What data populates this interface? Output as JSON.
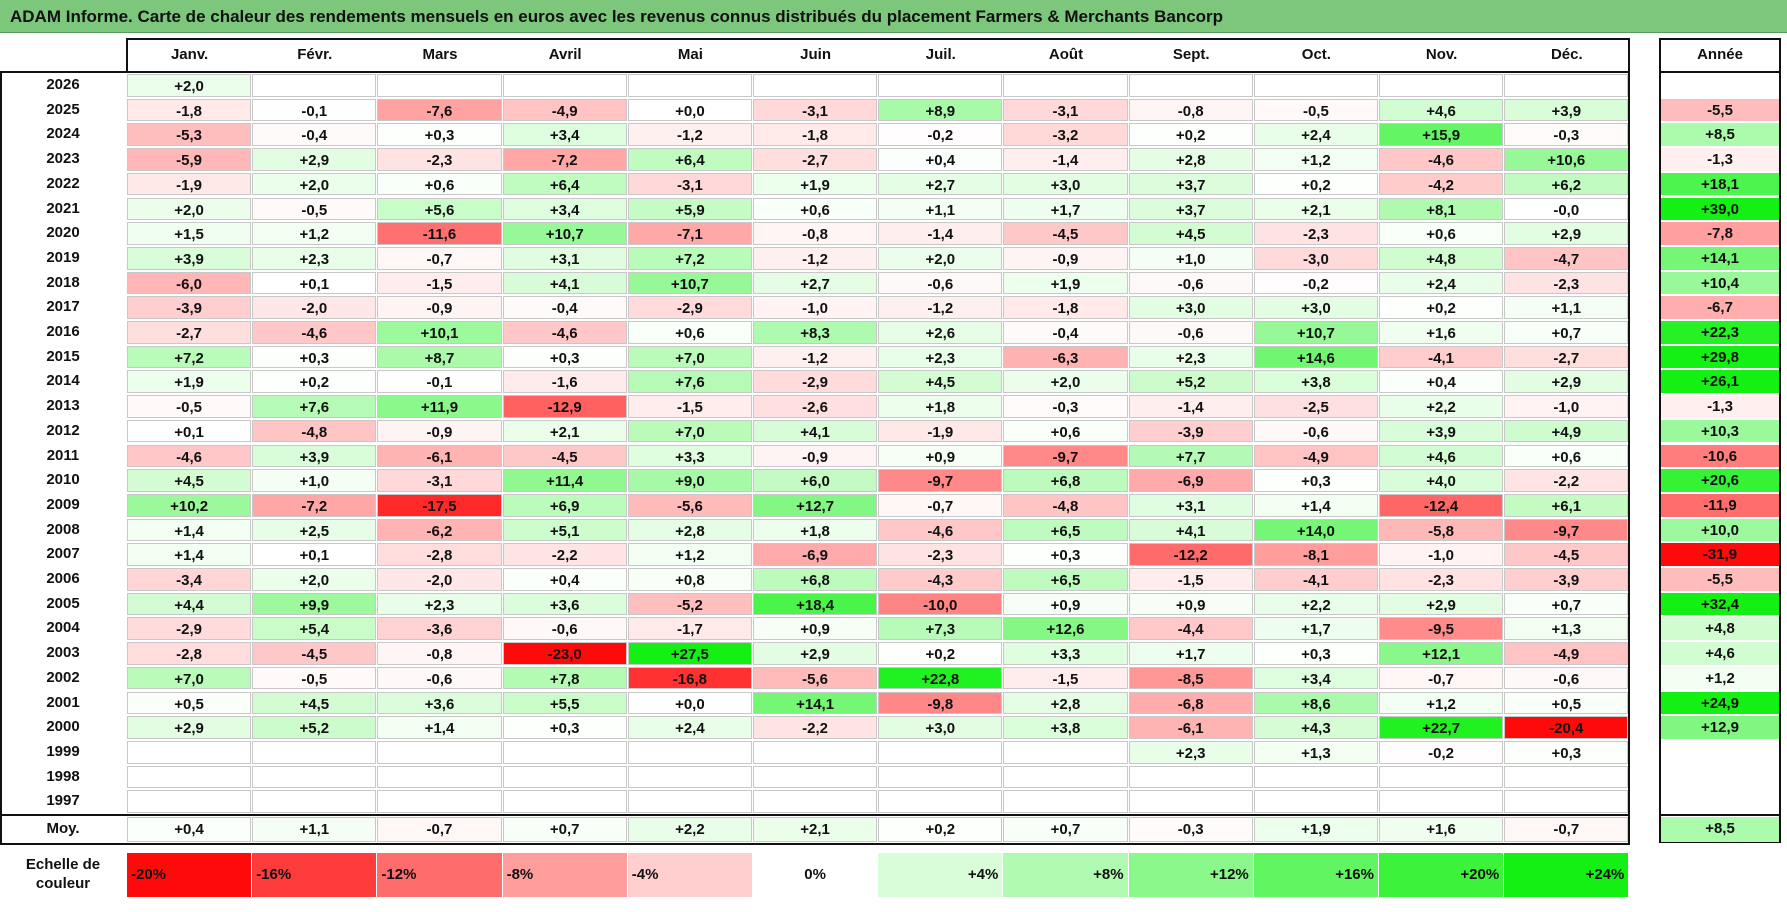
{
  "title": "ADAM Informe. Carte de chaleur des rendements mensuels en euros avec les revenus connus distribués du placement Farmers & Merchants Bancorp",
  "chart_data": {
    "type": "heatmap",
    "title": "ADAM Informe. Carte de chaleur des rendements mensuels en euros avec les revenus connus distribués du placement Farmers & Merchants Bancorp",
    "months": [
      "Janv.",
      "Févr.",
      "Mars",
      "Avril",
      "Mai",
      "Juin",
      "Juil.",
      "Août",
      "Sept.",
      "Oct.",
      "Nov.",
      "Déc."
    ],
    "year_header": "Année",
    "rows": [
      {
        "year": "2026",
        "months": [
          "+2,0",
          "",
          "",
          "",
          "",
          "",
          "",
          "",
          "",
          "",
          "",
          ""
        ],
        "annual": ""
      },
      {
        "year": "2025",
        "months": [
          "-1,8",
          "-0,1",
          "-7,6",
          "-4,9",
          "+0,0",
          "-3,1",
          "+8,9",
          "-3,1",
          "-0,8",
          "-0,5",
          "+4,6",
          "+3,9"
        ],
        "annual": "-5,5"
      },
      {
        "year": "2024",
        "months": [
          "-5,3",
          "-0,4",
          "+0,3",
          "+3,4",
          "-1,2",
          "-1,8",
          "-0,2",
          "-3,2",
          "+0,2",
          "+2,4",
          "+15,9",
          "-0,3"
        ],
        "annual": "+8,5"
      },
      {
        "year": "2023",
        "months": [
          "-5,9",
          "+2,9",
          "-2,3",
          "-7,2",
          "+6,4",
          "-2,7",
          "+0,4",
          "-1,4",
          "+2,8",
          "+1,2",
          "-4,6",
          "+10,6"
        ],
        "annual": "-1,3"
      },
      {
        "year": "2022",
        "months": [
          "-1,9",
          "+2,0",
          "+0,6",
          "+6,4",
          "-3,1",
          "+1,9",
          "+2,7",
          "+3,0",
          "+3,7",
          "+0,2",
          "-4,2",
          "+6,2"
        ],
        "annual": "+18,1"
      },
      {
        "year": "2021",
        "months": [
          "+2,0",
          "-0,5",
          "+5,6",
          "+3,4",
          "+5,9",
          "+0,6",
          "+1,1",
          "+1,7",
          "+3,7",
          "+2,1",
          "+8,1",
          "-0,0"
        ],
        "annual": "+39,0"
      },
      {
        "year": "2020",
        "months": [
          "+1,5",
          "+1,2",
          "-11,6",
          "+10,7",
          "-7,1",
          "-0,8",
          "-1,4",
          "-4,5",
          "+4,5",
          "-2,3",
          "+0,6",
          "+2,9"
        ],
        "annual": "-7,8"
      },
      {
        "year": "2019",
        "months": [
          "+3,9",
          "+2,3",
          "-0,7",
          "+3,1",
          "+7,2",
          "-1,2",
          "+2,0",
          "-0,9",
          "+1,0",
          "-3,0",
          "+4,8",
          "-4,7"
        ],
        "annual": "+14,1"
      },
      {
        "year": "2018",
        "months": [
          "-6,0",
          "+0,1",
          "-1,5",
          "+4,1",
          "+10,7",
          "+2,7",
          "-0,6",
          "+1,9",
          "-0,6",
          "-0,2",
          "+2,4",
          "-2,3"
        ],
        "annual": "+10,4"
      },
      {
        "year": "2017",
        "months": [
          "-3,9",
          "-2,0",
          "-0,9",
          "-0,4",
          "-2,9",
          "-1,0",
          "-1,2",
          "-1,8",
          "+3,0",
          "+3,0",
          "+0,2",
          "+1,1"
        ],
        "annual": "-6,7"
      },
      {
        "year": "2016",
        "months": [
          "-2,7",
          "-4,6",
          "+10,1",
          "-4,6",
          "+0,6",
          "+8,3",
          "+2,6",
          "-0,4",
          "-0,6",
          "+10,7",
          "+1,6",
          "+0,7"
        ],
        "annual": "+22,3"
      },
      {
        "year": "2015",
        "months": [
          "+7,2",
          "+0,3",
          "+8,7",
          "+0,3",
          "+7,0",
          "-1,2",
          "+2,3",
          "-6,3",
          "+2,3",
          "+14,6",
          "-4,1",
          "-2,7"
        ],
        "annual": "+29,8"
      },
      {
        "year": "2014",
        "months": [
          "+1,9",
          "+0,2",
          "-0,1",
          "-1,6",
          "+7,6",
          "-2,9",
          "+4,5",
          "+2,0",
          "+5,2",
          "+3,8",
          "+0,4",
          "+2,9"
        ],
        "annual": "+26,1"
      },
      {
        "year": "2013",
        "months": [
          "-0,5",
          "+7,6",
          "+11,9",
          "-12,9",
          "-1,5",
          "-2,6",
          "+1,8",
          "-0,3",
          "-1,4",
          "-2,5",
          "+2,2",
          "-1,0"
        ],
        "annual": "-1,3"
      },
      {
        "year": "2012",
        "months": [
          "+0,1",
          "-4,8",
          "-0,9",
          "+2,1",
          "+7,0",
          "+4,1",
          "-1,9",
          "+0,6",
          "-3,9",
          "-0,6",
          "+3,9",
          "+4,9"
        ],
        "annual": "+10,3"
      },
      {
        "year": "2011",
        "months": [
          "-4,6",
          "+3,9",
          "-6,1",
          "-4,5",
          "+3,3",
          "-0,9",
          "+0,9",
          "-9,7",
          "+7,7",
          "-4,9",
          "+4,6",
          "+0,6"
        ],
        "annual": "-10,6"
      },
      {
        "year": "2010",
        "months": [
          "+4,5",
          "+1,0",
          "-3,1",
          "+11,4",
          "+9,0",
          "+6,0",
          "-9,7",
          "+6,8",
          "-6,9",
          "+0,3",
          "+4,0",
          "-2,2"
        ],
        "annual": "+20,6"
      },
      {
        "year": "2009",
        "months": [
          "+10,2",
          "-7,2",
          "-17,5",
          "+6,9",
          "-5,6",
          "+12,7",
          "-0,7",
          "-4,8",
          "+3,1",
          "+1,4",
          "-12,4",
          "+6,1"
        ],
        "annual": "-11,9"
      },
      {
        "year": "2008",
        "months": [
          "+1,4",
          "+2,5",
          "-6,2",
          "+5,1",
          "+2,8",
          "+1,8",
          "-4,6",
          "+6,5",
          "+4,1",
          "+14,0",
          "-5,8",
          "-9,7"
        ],
        "annual": "+10,0"
      },
      {
        "year": "2007",
        "months": [
          "+1,4",
          "+0,1",
          "-2,8",
          "-2,2",
          "+1,2",
          "-6,9",
          "-2,3",
          "+0,3",
          "-12,2",
          "-8,1",
          "-1,0",
          "-4,5"
        ],
        "annual": "-31,9"
      },
      {
        "year": "2006",
        "months": [
          "-3,4",
          "+2,0",
          "-2,0",
          "+0,4",
          "+0,8",
          "+6,8",
          "-4,3",
          "+6,5",
          "-1,5",
          "-4,1",
          "-2,3",
          "-3,9"
        ],
        "annual": "-5,5"
      },
      {
        "year": "2005",
        "months": [
          "+4,4",
          "+9,9",
          "+2,3",
          "+3,6",
          "-5,2",
          "+18,4",
          "-10,0",
          "+0,9",
          "+0,9",
          "+2,2",
          "+2,9",
          "+0,7"
        ],
        "annual": "+32,4"
      },
      {
        "year": "2004",
        "months": [
          "-2,9",
          "+5,4",
          "-3,6",
          "-0,6",
          "-1,7",
          "+0,9",
          "+7,3",
          "+12,6",
          "-4,4",
          "+1,7",
          "-9,5",
          "+1,3"
        ],
        "annual": "+4,8"
      },
      {
        "year": "2003",
        "months": [
          "-2,8",
          "-4,5",
          "-0,8",
          "-23,0",
          "+27,5",
          "+2,9",
          "+0,2",
          "+3,3",
          "+1,7",
          "+0,3",
          "+12,1",
          "-4,9"
        ],
        "annual": "+4,6"
      },
      {
        "year": "2002",
        "months": [
          "+7,0",
          "-0,5",
          "-0,6",
          "+7,8",
          "-16,8",
          "-5,6",
          "+22,8",
          "-1,5",
          "-8,5",
          "+3,4",
          "-0,7",
          "-0,6"
        ],
        "annual": "+1,2"
      },
      {
        "year": "2001",
        "months": [
          "+0,5",
          "+4,5",
          "+3,6",
          "+5,5",
          "+0,0",
          "+14,1",
          "-9,8",
          "+2,8",
          "-6,8",
          "+8,6",
          "+1,2",
          "+0,5"
        ],
        "annual": "+24,9"
      },
      {
        "year": "2000",
        "months": [
          "+2,9",
          "+5,2",
          "+1,4",
          "+0,3",
          "+2,4",
          "-2,2",
          "+3,0",
          "+3,8",
          "-6,1",
          "+4,3",
          "+22,7",
          "-20,4"
        ],
        "annual": "+12,9"
      },
      {
        "year": "1999",
        "months": [
          "",
          "",
          "",
          "",
          "",
          "",
          "",
          "",
          "+2,3",
          "+1,3",
          "-0,2",
          "+0,3"
        ],
        "annual": ""
      },
      {
        "year": "1998",
        "months": [
          "",
          "",
          "",
          "",
          "",
          "",
          "",
          "",
          "",
          "",
          "",
          ""
        ],
        "annual": ""
      },
      {
        "year": "1997",
        "months": [
          "",
          "",
          "",
          "",
          "",
          "",
          "",
          "",
          "",
          "",
          "",
          ""
        ],
        "annual": ""
      }
    ],
    "average": {
      "label": "Moy.",
      "months": [
        "+0,4",
        "+1,1",
        "-0,7",
        "+0,7",
        "+2,2",
        "+2,1",
        "+0,2",
        "+0,7",
        "-0,3",
        "+1,9",
        "+1,6",
        "-0,7"
      ],
      "annual": "+8,5"
    },
    "scale": {
      "label": "Echelle de couleur",
      "steps": [
        {
          "text": "-20%",
          "value": -20
        },
        {
          "text": "-16%",
          "value": -16
        },
        {
          "text": "-12%",
          "value": -12
        },
        {
          "text": "-8%",
          "value": -8
        },
        {
          "text": "-4%",
          "value": -4
        },
        {
          "text": "0%",
          "value": 0
        },
        {
          "text": "+4%",
          "value": 4
        },
        {
          "text": "+8%",
          "value": 8
        },
        {
          "text": "+12%",
          "value": 12
        },
        {
          "text": "+16%",
          "value": 16
        },
        {
          "text": "+20%",
          "value": 20
        },
        {
          "text": "+24%",
          "value": 24
        }
      ]
    }
  }
}
